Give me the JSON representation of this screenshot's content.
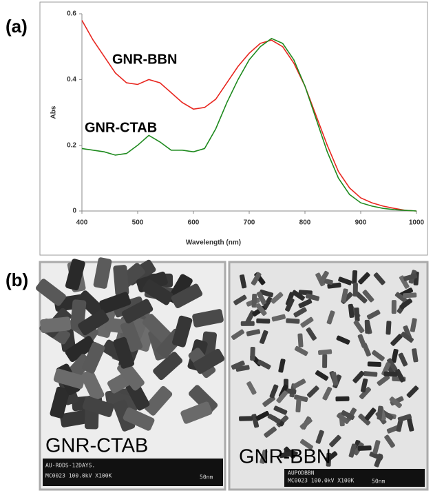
{
  "panel_labels": [
    "(a)",
    "(b)"
  ],
  "chart_data": {
    "type": "line",
    "xlabel": "Wavelength (nm)",
    "ylabel": "Abs",
    "x": [
      400,
      420,
      440,
      460,
      480,
      500,
      520,
      540,
      560,
      580,
      600,
      620,
      640,
      660,
      680,
      700,
      720,
      740,
      760,
      780,
      800,
      820,
      840,
      860,
      880,
      900,
      920,
      940,
      960,
      980,
      1000
    ],
    "series": [
      {
        "name": "GNR-BBN",
        "color": "#e8261f",
        "values": [
          0.58,
          0.52,
          0.47,
          0.42,
          0.39,
          0.385,
          0.4,
          0.39,
          0.36,
          0.33,
          0.31,
          0.315,
          0.34,
          0.39,
          0.44,
          0.48,
          0.51,
          0.52,
          0.5,
          0.45,
          0.38,
          0.29,
          0.2,
          0.12,
          0.07,
          0.04,
          0.025,
          0.015,
          0.008,
          0.002,
          0
        ]
      },
      {
        "name": "GNR-CTAB",
        "color": "#1e8a1e",
        "values": [
          0.19,
          0.185,
          0.18,
          0.17,
          0.175,
          0.2,
          0.23,
          0.21,
          0.185,
          0.185,
          0.18,
          0.19,
          0.25,
          0.33,
          0.4,
          0.46,
          0.5,
          0.525,
          0.51,
          0.46,
          0.38,
          0.28,
          0.18,
          0.1,
          0.05,
          0.025,
          0.015,
          0.008,
          0.004,
          0.002,
          0
        ]
      }
    ],
    "xlim": [
      400,
      1000
    ],
    "xticks": [
      400,
      500,
      600,
      700,
      800,
      900,
      1000
    ],
    "ylim": [
      0,
      0.6
    ],
    "yticks": [
      0,
      0.2,
      0.4,
      0.6
    ]
  },
  "images": [
    {
      "label": "GNR-CTAB",
      "caption": [
        "AU-RODS-12DAYS.",
        "MC0023 100.0kV  X100K",
        "50nm"
      ]
    },
    {
      "label": "GNR-BBN",
      "caption": [
        "AUPODBBN",
        "MC0023 100.0kV  X100K",
        "50nm"
      ]
    }
  ]
}
